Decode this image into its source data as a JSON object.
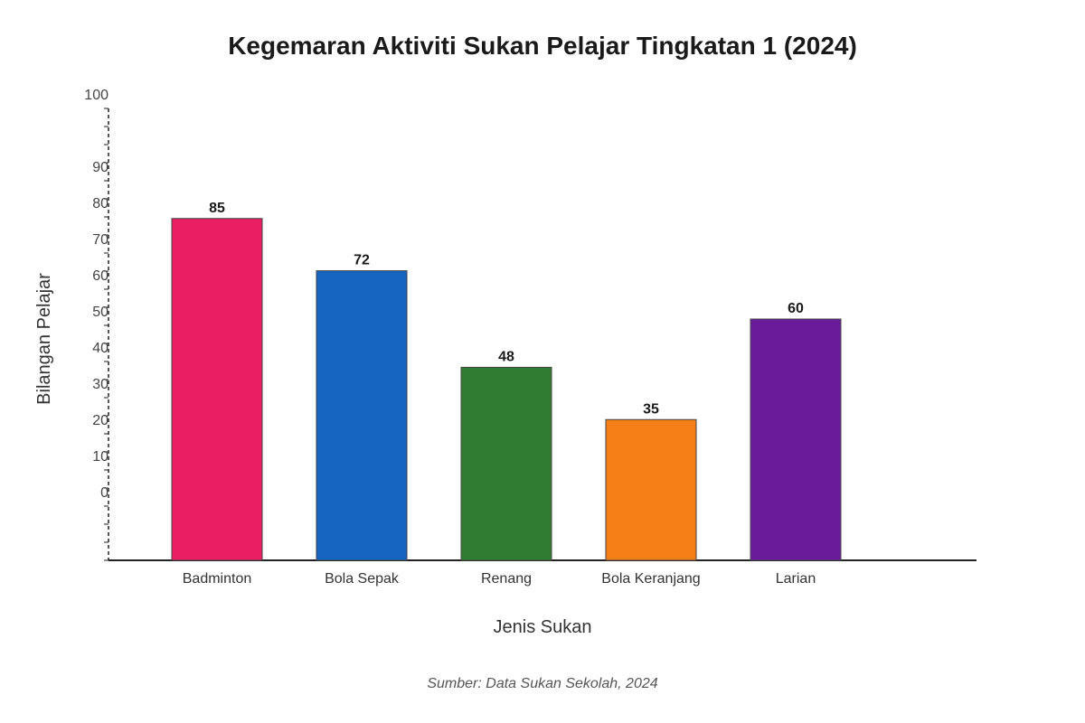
{
  "chart_data": {
    "type": "bar",
    "title": "Kegemaran Aktiviti Sukan Pelajar Tingkatan 1 (2024)",
    "xlabel": "Jenis Sukan",
    "ylabel": "Bilangan Pelajar",
    "categories": [
      "Badminton",
      "Bola Sepak",
      "Renang",
      "Bola Keranjang",
      "Larian"
    ],
    "values": [
      85,
      72,
      48,
      35,
      60
    ],
    "colors": [
      "#e91e63",
      "#1565c0",
      "#2e7d32",
      "#f57f17",
      "#6a1b9a"
    ],
    "y_tick_labels": [
      "100",
      "90",
      "80",
      "70",
      "60",
      "50",
      "40",
      "30",
      "20",
      "10",
      "0"
    ],
    "ylim": [
      0,
      100
    ],
    "grid": false,
    "legend": "none",
    "source": "Sumber: Data Sukan Sekolah, 2024"
  }
}
